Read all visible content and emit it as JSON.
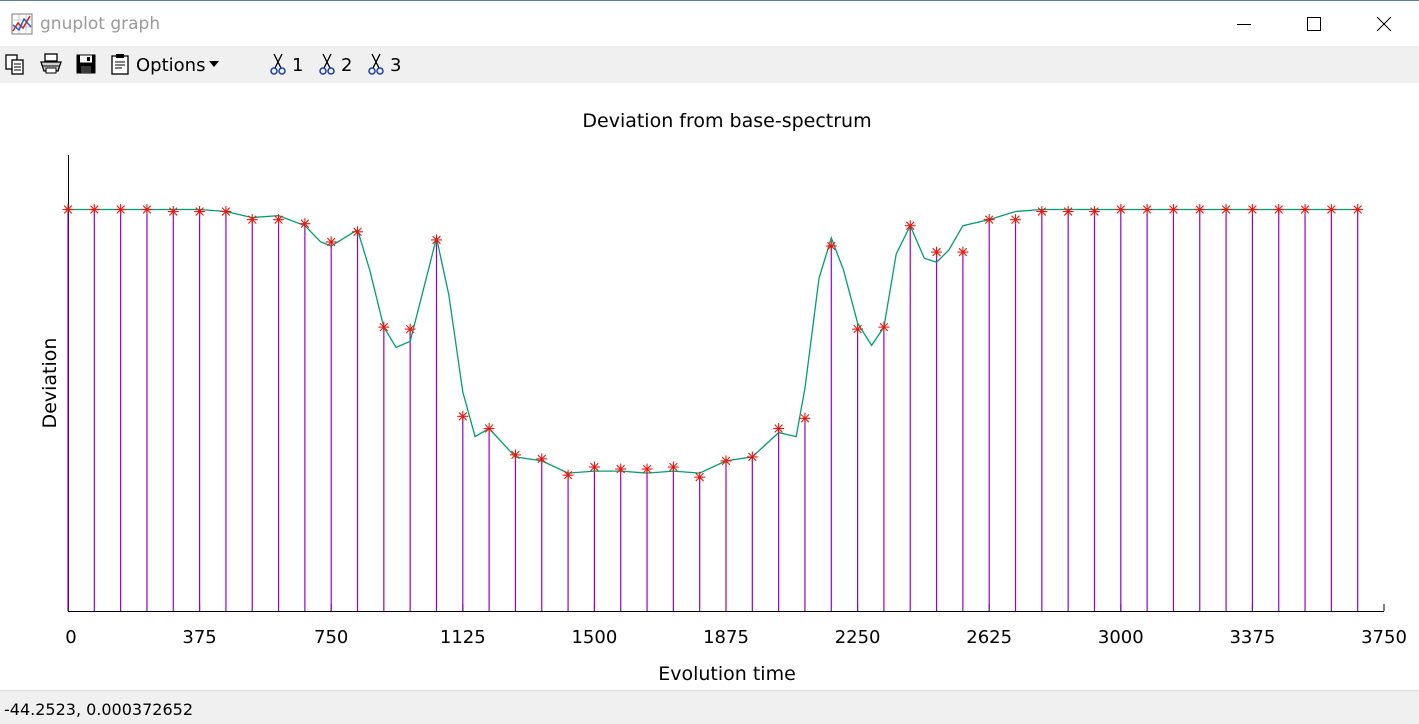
{
  "window": {
    "title": "gnuplot graph",
    "icons": {
      "app": "gnuplot-graph-icon",
      "minimize": "minimize-icon",
      "maximize": "maximize-icon",
      "close": "close-icon"
    }
  },
  "toolbar": {
    "copy_icon": "copy-icon",
    "print_icon": "printer-icon",
    "save_icon": "floppy-disk-icon",
    "options_label": "Options",
    "options_icon": "clipboard-icon",
    "options_arrow": "dropdown-arrow-icon",
    "bookmarks": [
      {
        "label": "1",
        "icon": "scissors-icon"
      },
      {
        "label": "2",
        "icon": "scissors-icon"
      },
      {
        "label": "3",
        "icon": "scissors-icon"
      }
    ]
  },
  "status": {
    "coords": "-44.2523,  0.000372652"
  },
  "colors": {
    "impulses": "#9400d3",
    "points": "#e8170f",
    "smooth_line": "#009e73",
    "axis": "#000000"
  },
  "chart_data": {
    "type": "line",
    "title": "Deviation from base-spectrum",
    "xlabel": "Evolution time",
    "ylabel": "Deviation",
    "xlim": [
      0,
      3750
    ],
    "ylim": [
      0,
      1.08
    ],
    "xticks": [
      0,
      375,
      750,
      1125,
      1500,
      1875,
      2250,
      2625,
      3000,
      3375,
      3750
    ],
    "yticks": [],
    "grid": false,
    "legend": "none",
    "series": [
      {
        "style": "impulses+points",
        "x": [
          0,
          75,
          150,
          225,
          300,
          375,
          450,
          525,
          600,
          675,
          750,
          825,
          900,
          975,
          1050,
          1125,
          1200,
          1275,
          1350,
          1425,
          1500,
          1575,
          1650,
          1725,
          1800,
          1875,
          1950,
          2025,
          2100,
          2175,
          2250,
          2325,
          2400,
          2475,
          2550,
          2625,
          2700,
          2775,
          2850,
          2925,
          3000,
          3075,
          3150,
          3225,
          3300,
          3375,
          3450,
          3525,
          3600,
          3675
        ],
        "y": [
          0.99,
          0.99,
          0.99,
          0.99,
          0.985,
          0.985,
          0.985,
          0.965,
          0.965,
          0.955,
          0.91,
          0.935,
          0.7,
          0.695,
          0.915,
          0.48,
          0.45,
          0.385,
          0.375,
          0.335,
          0.355,
          0.35,
          0.35,
          0.355,
          0.33,
          0.37,
          0.38,
          0.45,
          0.475,
          0.9,
          0.695,
          0.7,
          0.95,
          0.885,
          0.885,
          0.965,
          0.965,
          0.985,
          0.985,
          0.985,
          0.99,
          0.99,
          0.99,
          0.99,
          0.99,
          0.99,
          0.99,
          0.99,
          0.99,
          0.99
        ]
      },
      {
        "style": "smooth-line",
        "x": [
          0,
          75,
          150,
          225,
          300,
          375,
          450,
          525,
          600,
          675,
          720,
          750,
          825,
          860,
          900,
          935,
          975,
          1050,
          1085,
          1125,
          1160,
          1200,
          1275,
          1350,
          1425,
          1500,
          1575,
          1650,
          1725,
          1800,
          1875,
          1950,
          2025,
          2075,
          2100,
          2140,
          2175,
          2210,
          2250,
          2290,
          2325,
          2360,
          2400,
          2440,
          2475,
          2510,
          2550,
          2625,
          2700,
          2775,
          2850,
          3000,
          3675
        ],
        "y": [
          0.99,
          0.99,
          0.99,
          0.99,
          0.99,
          0.99,
          0.985,
          0.97,
          0.975,
          0.95,
          0.91,
          0.9,
          0.94,
          0.84,
          0.7,
          0.65,
          0.665,
          0.92,
          0.78,
          0.54,
          0.43,
          0.45,
          0.38,
          0.37,
          0.34,
          0.345,
          0.345,
          0.34,
          0.345,
          0.34,
          0.37,
          0.38,
          0.44,
          0.43,
          0.55,
          0.82,
          0.92,
          0.84,
          0.71,
          0.655,
          0.7,
          0.88,
          0.95,
          0.87,
          0.86,
          0.89,
          0.95,
          0.965,
          0.985,
          0.99,
          0.99,
          0.99,
          0.99
        ]
      }
    ]
  }
}
